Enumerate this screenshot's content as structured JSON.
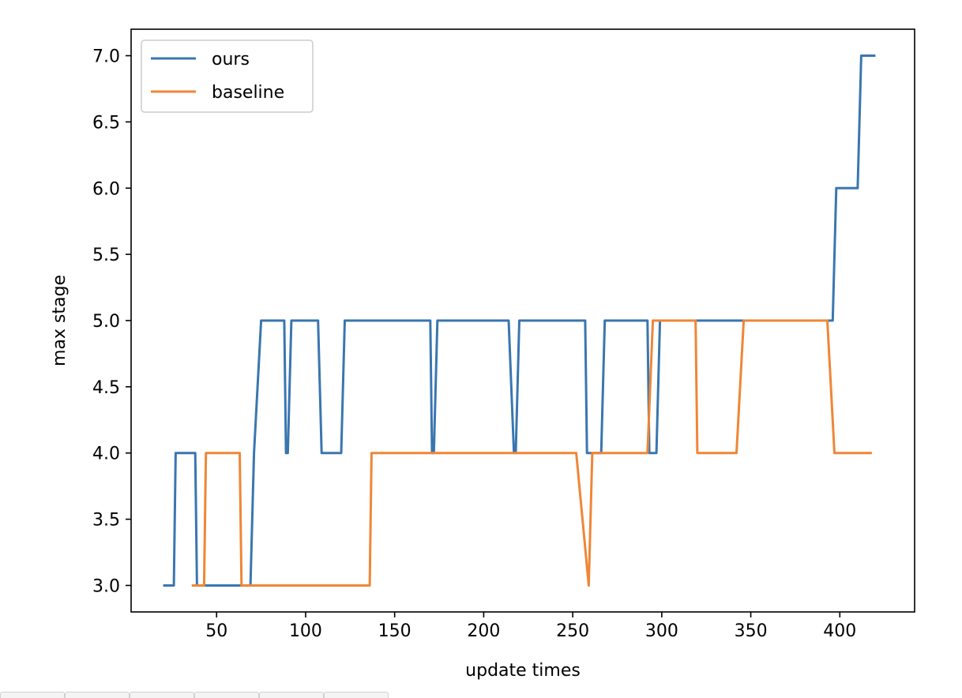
{
  "chart_data": {
    "type": "line",
    "title": "",
    "xlabel": "update times",
    "ylabel": "max stage",
    "xlim": [
      2,
      442
    ],
    "ylim": [
      2.8,
      7.2
    ],
    "xticks": [
      50,
      100,
      150,
      200,
      250,
      300,
      350,
      400
    ],
    "xtick_labels": [
      "50",
      "100",
      "150",
      "200",
      "250",
      "300",
      "350",
      "400"
    ],
    "yticks": [
      3.0,
      3.5,
      4.0,
      4.5,
      5.0,
      5.5,
      6.0,
      6.5,
      7.0
    ],
    "ytick_labels": [
      "3.0",
      "3.5",
      "4.0",
      "4.5",
      "5.0",
      "5.5",
      "6.0",
      "6.5",
      "7.0"
    ],
    "grid": false,
    "legend": "top-left",
    "series": [
      {
        "name": "ours",
        "color": "#3a76b0",
        "points": [
          [
            20,
            3
          ],
          [
            26,
            3
          ],
          [
            27,
            4
          ],
          [
            38,
            4
          ],
          [
            39,
            3
          ],
          [
            69,
            3
          ],
          [
            71,
            4
          ],
          [
            75,
            5
          ],
          [
            88,
            5
          ],
          [
            89,
            4
          ],
          [
            90,
            4
          ],
          [
            92,
            5
          ],
          [
            107,
            5
          ],
          [
            109,
            4
          ],
          [
            120,
            4
          ],
          [
            122,
            5
          ],
          [
            170,
            5
          ],
          [
            171,
            4
          ],
          [
            172,
            4
          ],
          [
            174,
            5
          ],
          [
            214,
            5
          ],
          [
            217,
            4
          ],
          [
            218,
            4
          ],
          [
            220,
            5
          ],
          [
            257,
            5
          ],
          [
            258,
            4
          ],
          [
            266,
            4
          ],
          [
            268,
            5
          ],
          [
            292,
            5
          ],
          [
            293,
            4
          ],
          [
            297,
            4
          ],
          [
            299,
            5
          ],
          [
            396,
            5
          ],
          [
            398,
            6
          ],
          [
            410,
            6
          ],
          [
            412,
            7
          ],
          [
            420,
            7
          ]
        ]
      },
      {
        "name": "baseline",
        "color": "#ef8636",
        "points": [
          [
            36,
            3
          ],
          [
            43,
            3
          ],
          [
            44,
            4
          ],
          [
            63,
            4
          ],
          [
            64,
            3
          ],
          [
            136,
            3
          ],
          [
            137,
            4
          ],
          [
            252,
            4
          ],
          [
            259,
            3
          ],
          [
            261,
            4
          ],
          [
            292,
            4
          ],
          [
            295,
            5
          ],
          [
            319,
            5
          ],
          [
            320,
            4
          ],
          [
            342,
            4
          ],
          [
            346,
            5
          ],
          [
            393,
            5
          ],
          [
            397,
            4
          ],
          [
            418,
            4
          ]
        ]
      }
    ]
  }
}
